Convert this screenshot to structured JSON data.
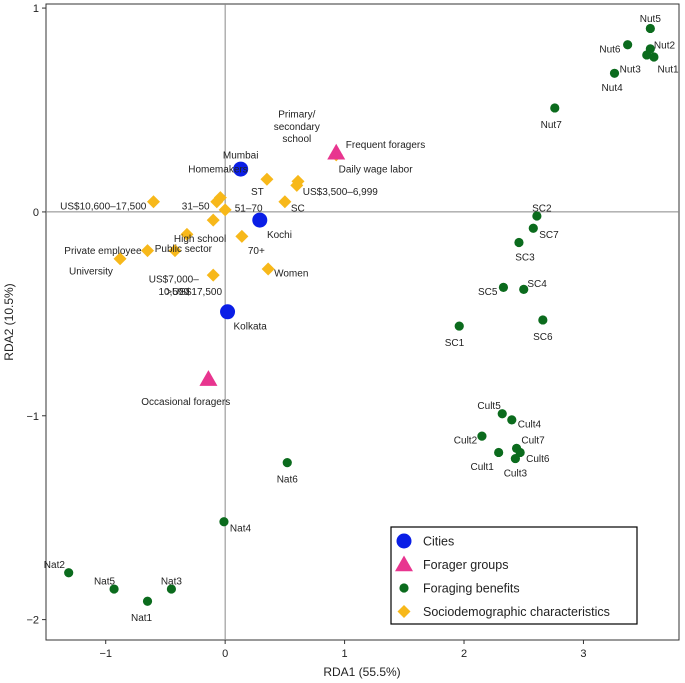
{
  "chart_data": {
    "type": "scatter",
    "title": "",
    "xlabel": "RDA1 (55.5%)",
    "ylabel": "RDA2 (10.5%)",
    "xlim": [
      -1.5,
      3.8
    ],
    "ylim": [
      -2.1,
      1.02
    ],
    "xticks": [
      -1,
      0,
      1,
      2,
      3
    ],
    "yticks": [
      -2,
      -1,
      0,
      1
    ],
    "xtick_labels": [
      "−1",
      "0",
      "1",
      "2",
      "3"
    ],
    "ytick_labels": [
      "−2",
      "−1",
      "0",
      "1"
    ],
    "zero_lines": true,
    "legend_position": "bottom-right",
    "legend": [
      {
        "key": "cities",
        "label": "Cities",
        "marker": "circle",
        "color": "#0a1ee6"
      },
      {
        "key": "forager_groups",
        "label": "Forager groups",
        "marker": "triangle",
        "color": "#e8358f"
      },
      {
        "key": "foraging_benefits",
        "label": "Foraging benefits",
        "marker": "circle-small",
        "color": "#0b6b1d"
      },
      {
        "key": "sociodemographic",
        "label": "Sociodemographic characteristics",
        "marker": "diamond",
        "color": "#f7b81a"
      }
    ],
    "series": [
      {
        "name": "Cities",
        "key": "cities",
        "points": [
          {
            "label": "Mumbai",
            "x": 0.13,
            "y": 0.21,
            "anchor": "middle",
            "lx": 0.0,
            "ly": 0.07
          },
          {
            "label": "Kochi",
            "x": 0.29,
            "y": -0.04,
            "anchor": "start",
            "lx": 0.06,
            "ly": -0.07
          },
          {
            "label": "Kolkata",
            "x": 0.02,
            "y": -0.49,
            "anchor": "start",
            "lx": 0.05,
            "ly": -0.07
          }
        ]
      },
      {
        "name": "Forager groups",
        "key": "forager_groups",
        "points": [
          {
            "label": "Frequent foragers",
            "x": 0.93,
            "y": 0.29,
            "anchor": "start",
            "lx": 0.08,
            "ly": 0.04
          },
          {
            "label": "Occasional foragers",
            "x": -0.14,
            "y": -0.82,
            "anchor": "middle",
            "lx": -0.19,
            "ly": -0.11
          }
        ]
      },
      {
        "name": "Foraging benefits",
        "key": "foraging_benefits",
        "points": [
          {
            "label": "Nut5",
            "x": 3.56,
            "y": 0.9,
            "anchor": "middle",
            "lx": 0.0,
            "ly": 0.05
          },
          {
            "label": "Nut6",
            "x": 3.37,
            "y": 0.82,
            "anchor": "end",
            "lx": -0.06,
            "ly": -0.02
          },
          {
            "label": "Nut2",
            "x": 3.56,
            "y": 0.8,
            "anchor": "start",
            "lx": 0.03,
            "ly": 0.02
          },
          {
            "label": "Nut3",
            "x": 3.53,
            "y": 0.77,
            "anchor": "end",
            "lx": -0.05,
            "ly": -0.07
          },
          {
            "label": "Nut1",
            "x": 3.59,
            "y": 0.76,
            "anchor": "start",
            "lx": 0.03,
            "ly": -0.06
          },
          {
            "label": "Nut4",
            "x": 3.26,
            "y": 0.68,
            "anchor": "middle",
            "lx": -0.02,
            "ly": -0.07
          },
          {
            "label": "Nut7",
            "x": 2.76,
            "y": 0.51,
            "anchor": "middle",
            "lx": -0.03,
            "ly": -0.08
          },
          {
            "label": "SC2",
            "x": 2.61,
            "y": -0.02,
            "anchor": "start",
            "lx": -0.04,
            "ly": 0.04
          },
          {
            "label": "SC7",
            "x": 2.58,
            "y": -0.08,
            "anchor": "start",
            "lx": 0.05,
            "ly": -0.03
          },
          {
            "label": "SC3",
            "x": 2.46,
            "y": -0.15,
            "anchor": "middle",
            "lx": 0.05,
            "ly": -0.07
          },
          {
            "label": "SC5",
            "x": 2.33,
            "y": -0.37,
            "anchor": "end",
            "lx": -0.05,
            "ly": -0.02
          },
          {
            "label": "SC4",
            "x": 2.5,
            "y": -0.38,
            "anchor": "start",
            "lx": 0.03,
            "ly": 0.03
          },
          {
            "label": "SC1",
            "x": 1.96,
            "y": -0.56,
            "anchor": "middle",
            "lx": -0.04,
            "ly": -0.08
          },
          {
            "label": "SC6",
            "x": 2.66,
            "y": -0.53,
            "anchor": "middle",
            "lx": 0.0,
            "ly": -0.08
          },
          {
            "label": "Cult5",
            "x": 2.32,
            "y": -0.99,
            "anchor": "middle",
            "lx": -0.11,
            "ly": 0.04
          },
          {
            "label": "Cult4",
            "x": 2.4,
            "y": -1.02,
            "anchor": "start",
            "lx": 0.05,
            "ly": -0.02
          },
          {
            "label": "Cult2",
            "x": 2.15,
            "y": -1.1,
            "anchor": "end",
            "lx": -0.04,
            "ly": -0.02
          },
          {
            "label": "Cult7",
            "x": 2.44,
            "y": -1.16,
            "anchor": "start",
            "lx": 0.04,
            "ly": 0.04
          },
          {
            "label": "Cult6",
            "x": 2.47,
            "y": -1.18,
            "anchor": "start",
            "lx": 0.05,
            "ly": -0.03
          },
          {
            "label": "Cult1",
            "x": 2.29,
            "y": -1.18,
            "anchor": "end",
            "lx": -0.04,
            "ly": -0.07
          },
          {
            "label": "Cult3",
            "x": 2.43,
            "y": -1.21,
            "anchor": "middle",
            "lx": 0.0,
            "ly": -0.07
          },
          {
            "label": "Nat6",
            "x": 0.52,
            "y": -1.23,
            "anchor": "middle",
            "lx": 0.0,
            "ly": -0.08
          },
          {
            "label": "Nat4",
            "x": -0.01,
            "y": -1.52,
            "anchor": "start",
            "lx": 0.05,
            "ly": -0.03
          },
          {
            "label": "Nat2",
            "x": -1.31,
            "y": -1.77,
            "anchor": "middle",
            "lx": -0.12,
            "ly": 0.04
          },
          {
            "label": "Nat5",
            "x": -0.93,
            "y": -1.85,
            "anchor": "middle",
            "lx": -0.08,
            "ly": 0.04
          },
          {
            "label": "Nat3",
            "x": -0.45,
            "y": -1.85,
            "anchor": "middle",
            "lx": 0.0,
            "ly": 0.04
          },
          {
            "label": "Nat1",
            "x": -0.65,
            "y": -1.91,
            "anchor": "middle",
            "lx": -0.05,
            "ly": -0.08
          }
        ]
      },
      {
        "name": "Sociodemographic characteristics",
        "key": "sociodemographic",
        "points": [
          {
            "label": "Primary/",
            "x": 0.61,
            "y": 0.15,
            "anchor": "middle",
            "lx": -0.01,
            "ly": 0.33
          },
          {
            "label": "secondary",
            "x": 0.61,
            "y": 0.15,
            "anchor": "middle",
            "lx": -0.01,
            "ly": 0.27
          },
          {
            "label": "school",
            "x": 0.61,
            "y": 0.15,
            "anchor": "middle",
            "lx": -0.01,
            "ly": 0.21
          },
          {
            "label": "Daily wage labor",
            "x": 0.93,
            "y": 0.28,
            "anchor": "start",
            "lx": 0.02,
            "ly": -0.07
          },
          {
            "label": "US$3,500–6,999",
            "x": 0.6,
            "y": 0.13,
            "anchor": "start",
            "lx": 0.05,
            "ly": -0.03
          },
          {
            "label": "ST",
            "x": 0.35,
            "y": 0.16,
            "anchor": "middle",
            "lx": -0.08,
            "ly": -0.06
          },
          {
            "label": "SC",
            "x": 0.5,
            "y": 0.05,
            "anchor": "start",
            "lx": 0.05,
            "ly": -0.03
          },
          {
            "label": "Homemakers",
            "x": -0.04,
            "y": 0.07,
            "anchor": "middle",
            "lx": -0.02,
            "ly": 0.14
          },
          {
            "label": "31–50",
            "x": -0.07,
            "y": 0.05,
            "anchor": "end",
            "lx": -0.06,
            "ly": -0.02
          },
          {
            "label": "51–70",
            "x": 0.0,
            "y": 0.01,
            "anchor": "start",
            "lx": 0.08,
            "ly": 0.01
          },
          {
            "label": "US$10,600–17,500",
            "x": -0.6,
            "y": 0.05,
            "anchor": "end",
            "lx": -0.06,
            "ly": -0.02
          },
          {
            "label": "High school",
            "x": -0.1,
            "y": -0.04,
            "anchor": "middle",
            "lx": -0.11,
            "ly": -0.09
          },
          {
            "label": "Public sector",
            "x": -0.32,
            "y": -0.11,
            "anchor": "middle",
            "lx": -0.03,
            "ly": -0.07
          },
          {
            "label": "70+",
            "x": 0.14,
            "y": -0.12,
            "anchor": "start",
            "lx": 0.05,
            "ly": -0.07
          },
          {
            "label": "Private employee",
            "x": -0.65,
            "y": -0.19,
            "anchor": "end",
            "lx": -0.05,
            "ly": 0.0
          },
          {
            "label": "US$7,000–",
            "x": -0.42,
            "y": -0.19,
            "anchor": "middle",
            "lx": -0.01,
            "ly": -0.14
          },
          {
            "label": "10,599",
            "x": -0.42,
            "y": -0.19,
            "anchor": "middle",
            "lx": -0.01,
            "ly": -0.2
          },
          {
            "label": "Women",
            "x": 0.36,
            "y": -0.28,
            "anchor": "start",
            "lx": 0.05,
            "ly": -0.02
          },
          {
            "label": "University",
            "x": -0.88,
            "y": -0.23,
            "anchor": "end",
            "lx": -0.06,
            "ly": -0.06
          },
          {
            "label": ">US$17,500",
            "x": -0.1,
            "y": -0.31,
            "anchor": "middle",
            "lx": -0.16,
            "ly": -0.08
          }
        ]
      }
    ]
  }
}
